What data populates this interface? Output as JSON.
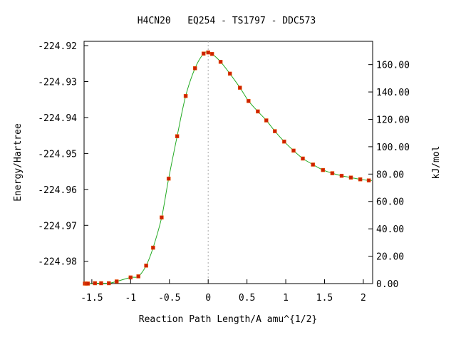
{
  "chart_data": {
    "type": "line",
    "title": "H4CN20   EQ254 - TS1797 - DDC573",
    "xlabel": "Reaction Path Length/A amu^{1/2}",
    "ylabel": "Energy/Hartree",
    "y2label": "kJ/mol",
    "xlim": [
      -1.6,
      2.12
    ],
    "ylim": [
      -224.9862,
      -224.9188
    ],
    "y2lim": [
      0.0,
      177.0
    ],
    "x_ticks": [
      "-1.5",
      "-1",
      "-0.5",
      "0",
      "0.5",
      "1",
      "1.5",
      "2"
    ],
    "x_tick_values": [
      -1.5,
      -1.0,
      -0.5,
      0.0,
      0.5,
      1.0,
      1.5,
      2.0
    ],
    "y_ticks": [
      "-224.92",
      "-224.93",
      "-224.94",
      "-224.95",
      "-224.96",
      "-224.97",
      "-224.98"
    ],
    "y_tick_values": [
      -224.92,
      -224.93,
      -224.94,
      -224.95,
      -224.96,
      -224.97,
      -224.98
    ],
    "y2_ticks": [
      "160.00",
      "140.00",
      "120.00",
      "100.00",
      "80.00",
      "60.00",
      "40.00",
      "20.00",
      "0.00"
    ],
    "y2_tick_values": [
      160,
      140,
      120,
      100,
      80,
      60,
      40,
      20,
      0
    ],
    "ts_marker_x": 0.0,
    "grid": false,
    "series": [
      {
        "x": [
          -1.59,
          -1.57,
          -1.55,
          -1.46,
          -1.38,
          -1.28,
          -1.18,
          -1.0,
          -0.9,
          -0.8,
          -0.71,
          -0.6,
          -0.51,
          -0.4,
          -0.29,
          -0.17,
          -0.06,
          0.0,
          0.05,
          0.16,
          0.28,
          0.41,
          0.52,
          0.64,
          0.75,
          0.86,
          0.98,
          1.1,
          1.22,
          1.35,
          1.48,
          1.6,
          1.72,
          1.84,
          1.96,
          2.07
        ],
        "y": [
          -224.9862,
          -224.9862,
          -224.9862,
          -224.9861,
          -224.9861,
          -224.9861,
          -224.9856,
          -224.9845,
          -224.9842,
          -224.9812,
          -224.9762,
          -224.9678,
          -224.957,
          -224.9452,
          -224.934,
          -224.9263,
          -224.9222,
          -224.9219,
          -224.9223,
          -224.9245,
          -224.9278,
          -224.9317,
          -224.9354,
          -224.9383,
          -224.9408,
          -224.9438,
          -224.9467,
          -224.9492,
          -224.9514,
          -224.9531,
          -224.9546,
          -224.9555,
          -224.9562,
          -224.9567,
          -224.9572,
          -224.9575
        ]
      }
    ]
  }
}
